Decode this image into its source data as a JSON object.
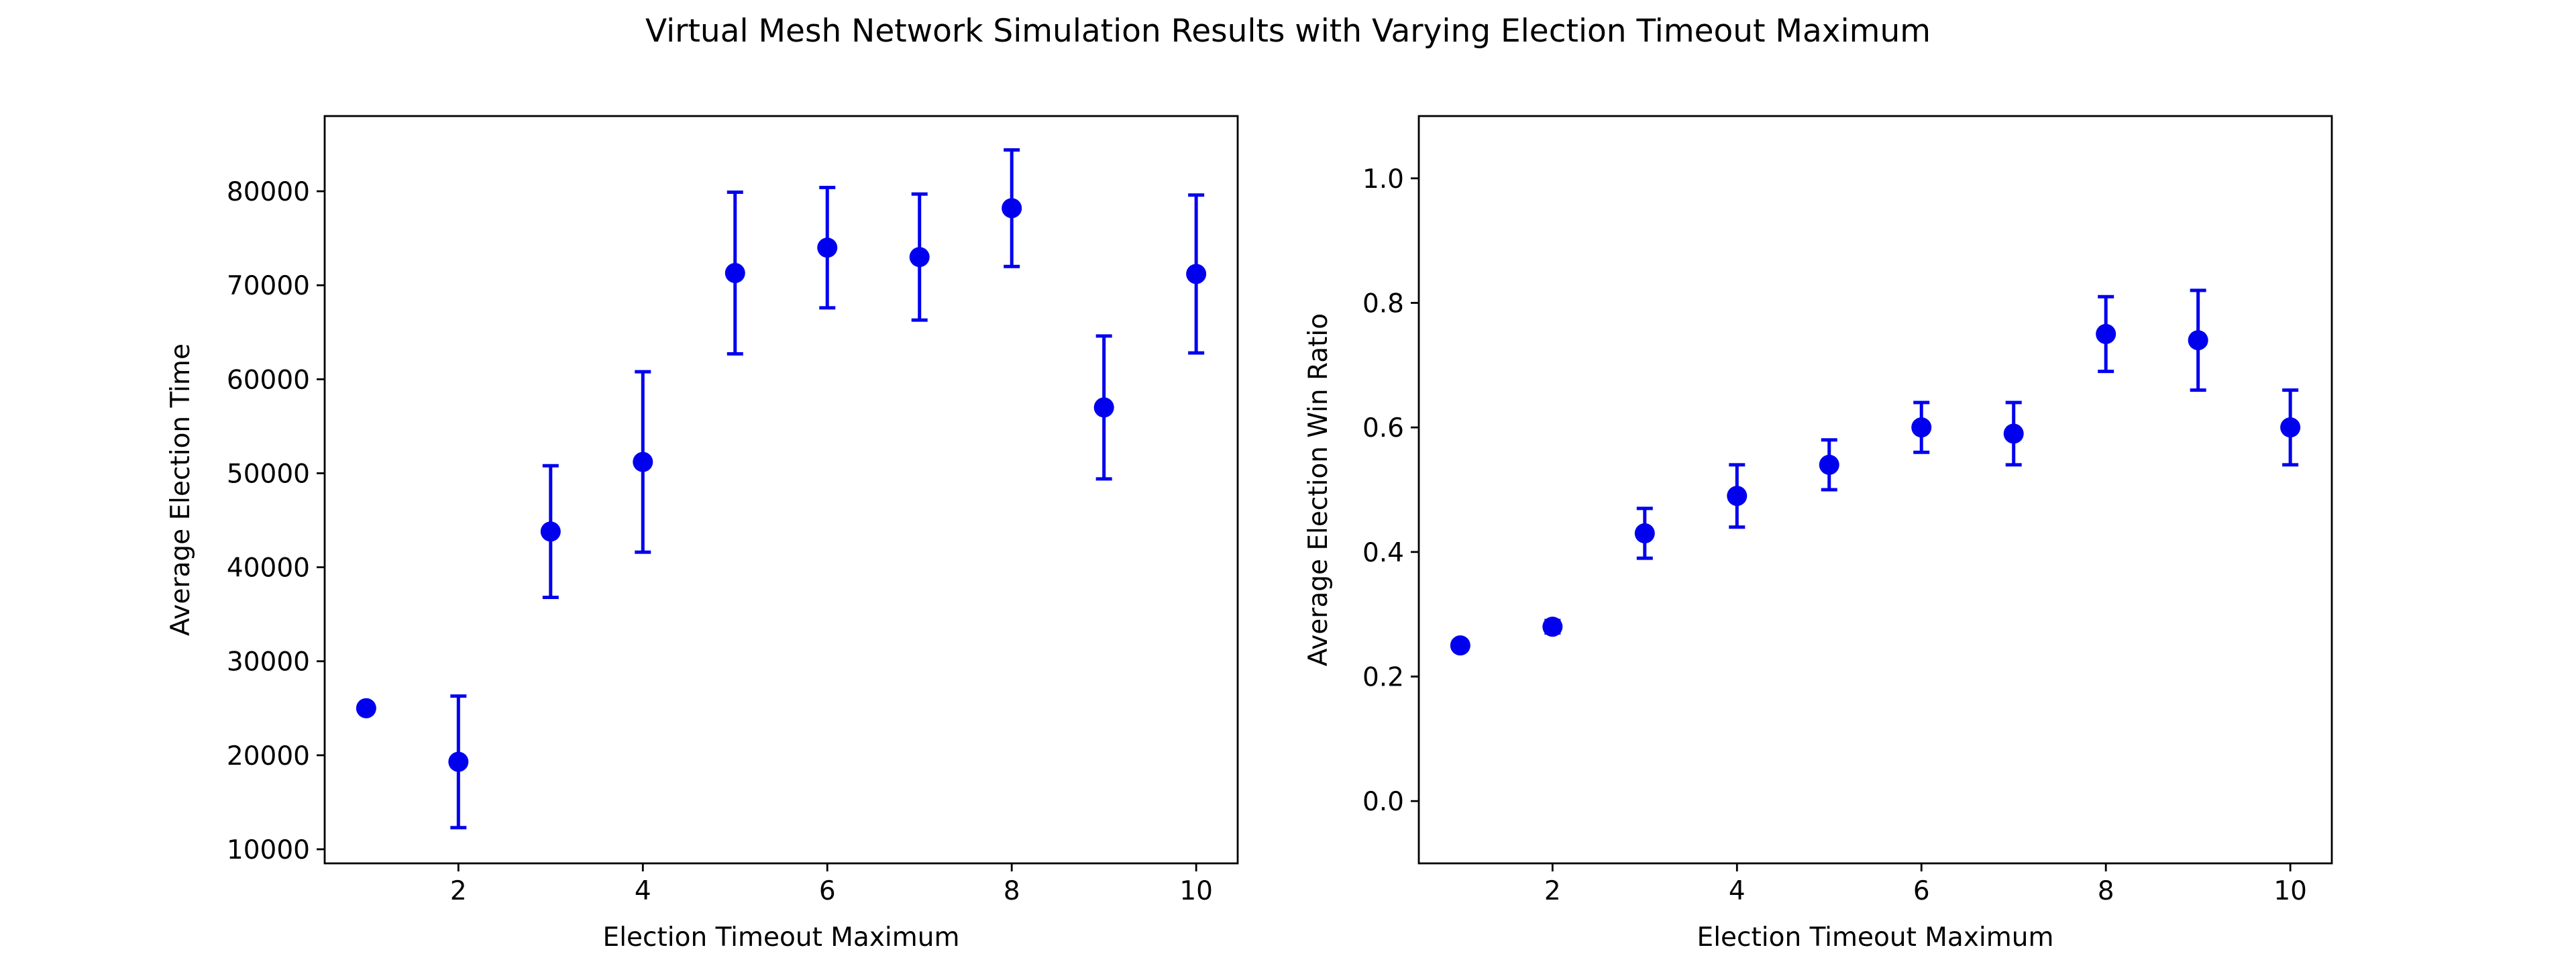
{
  "figure": {
    "title": "Virtual Mesh Network Simulation Results with Varying Election Timeout Maximum"
  },
  "colors": {
    "series": "#0000ee",
    "axes": "#000000",
    "background": "#ffffff"
  },
  "chart_data": [
    {
      "type": "scatter",
      "title": "",
      "xlabel": "Election Timeout Maximum",
      "ylabel": "Average Election Time",
      "xlim": [
        0.55,
        10.45
      ],
      "ylim": [
        8500,
        88000
      ],
      "xticks": [
        2,
        4,
        6,
        8,
        10
      ],
      "yticks": [
        10000,
        20000,
        30000,
        40000,
        50000,
        60000,
        70000,
        80000
      ],
      "grid": false,
      "legend": "none",
      "marker": "circle",
      "error_bars": true,
      "x": [
        1,
        2,
        3,
        4,
        5,
        6,
        7,
        8,
        9,
        10
      ],
      "y": [
        25000,
        19300,
        43800,
        51200,
        71300,
        74000,
        73000,
        78200,
        57000,
        71200
      ],
      "yerr": [
        0,
        7000,
        7000,
        9600,
        8600,
        6400,
        6700,
        6200,
        7600,
        8400
      ]
    },
    {
      "type": "scatter",
      "title": "",
      "xlabel": "Election Timeout Maximum",
      "ylabel": "Average Election Win Ratio",
      "xlim": [
        0.55,
        10.45
      ],
      "ylim": [
        -0.1,
        1.1
      ],
      "xticks": [
        2,
        4,
        6,
        8,
        10
      ],
      "yticks": [
        0.0,
        0.2,
        0.4,
        0.6,
        0.8,
        1.0
      ],
      "grid": false,
      "legend": "none",
      "marker": "circle",
      "error_bars": true,
      "x": [
        1,
        2,
        3,
        4,
        5,
        6,
        7,
        8,
        9,
        10
      ],
      "y": [
        0.25,
        0.28,
        0.43,
        0.49,
        0.54,
        0.6,
        0.59,
        0.75,
        0.74,
        0.6
      ],
      "yerr": [
        0.0,
        0.01,
        0.04,
        0.05,
        0.04,
        0.04,
        0.05,
        0.06,
        0.08,
        0.06
      ]
    }
  ]
}
